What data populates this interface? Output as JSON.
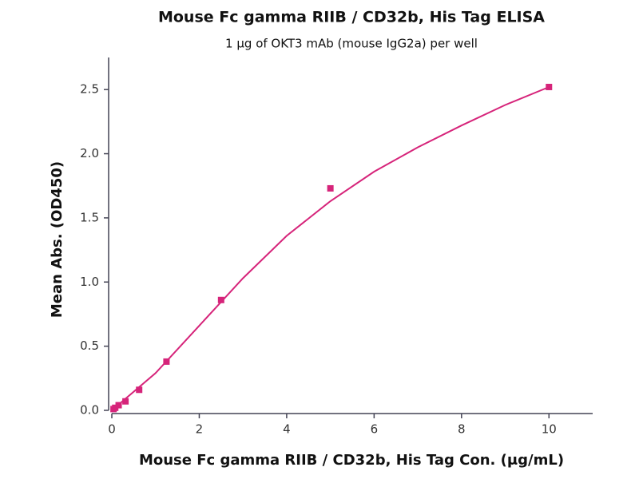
{
  "chart_data": {
    "type": "scatter",
    "title": "Mouse Fc gamma RIIB / CD32b, His Tag ELISA",
    "subtitle": "1 μg of OKT3 mAb (mouse IgG2a) per well",
    "x_label": "Mouse Fc gamma RIIB / CD32b, His Tag Con. (μg/mL)",
    "y_label": "Mean Abs. (OD450)",
    "series": [
      {
        "color": "#d6247a",
        "marker": "square",
        "x": [
          0.039,
          0.078,
          0.156,
          0.3125,
          0.625,
          1.25,
          2.5,
          5,
          10
        ],
        "values": [
          0.01,
          0.02,
          0.04,
          0.07,
          0.16,
          0.38,
          0.86,
          1.73,
          2.52
        ]
      },
      {
        "color": "#d6247a",
        "marker": "line",
        "x": [
          0,
          1,
          2,
          3,
          4,
          5,
          6,
          7,
          8,
          9,
          10
        ],
        "values": [
          0.0,
          0.29,
          0.66,
          1.03,
          1.36,
          1.63,
          1.86,
          2.05,
          2.22,
          2.38,
          2.52
        ]
      }
    ],
    "xlim": [
      0,
      11
    ],
    "xticks": [
      0,
      2,
      4,
      6,
      8,
      10
    ],
    "ylim": [
      0,
      2.75
    ],
    "yticks": [
      {
        "value": 0,
        "label": "0.0"
      },
      {
        "value": 0.5,
        "label": "0.5"
      },
      {
        "value": 1,
        "label": "1.0"
      },
      {
        "value": 1.5,
        "label": "1.5"
      },
      {
        "value": 2,
        "label": "2.0"
      },
      {
        "value": 2.5,
        "label": "2.5"
      }
    ]
  }
}
